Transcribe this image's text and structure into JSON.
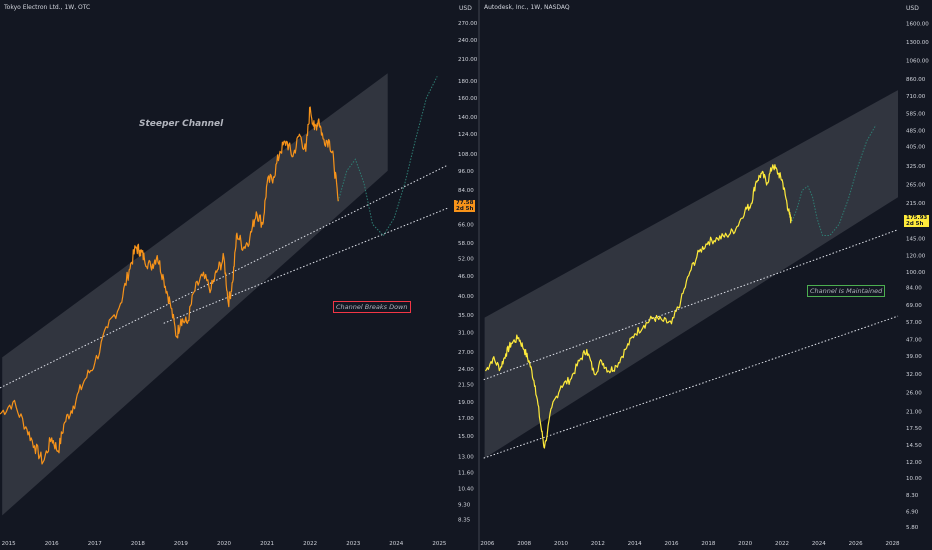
{
  "chart_data": [
    {
      "type": "line",
      "title": "Tokyo Electron Ltd., 1W, OTC",
      "currency": "USD",
      "y_scale": "log",
      "ylim": [
        7.5,
        300
      ],
      "xlim": [
        2014.8,
        2025.2
      ],
      "y_ticks": [
        "270.00",
        "240.00",
        "210.00",
        "180.00",
        "160.00",
        "140.00",
        "124.00",
        "108.00",
        "96.00",
        "84.00",
        "66.00",
        "58.00",
        "52.00",
        "46.00",
        "40.00",
        "35.00",
        "31.00",
        "27.00",
        "24.00",
        "21.50",
        "19.00",
        "17.00",
        "15.00",
        "13.00",
        "11.60",
        "10.40",
        "9.30",
        "8.35"
      ],
      "x_ticks": [
        "2015",
        "2016",
        "2017",
        "2018",
        "2019",
        "2020",
        "2021",
        "2022",
        "2023",
        "2024",
        "2025"
      ],
      "last_price": "77.58",
      "countdown": "2d 5h",
      "series_color": "#f7931a",
      "series": [
        {
          "x": [
            2014.8,
            2015.1,
            2015.4,
            2015.6,
            2015.8,
            2016.0,
            2016.15,
            2016.3,
            2016.5,
            2016.75,
            2017.0,
            2017.3,
            2017.6,
            2017.8,
            2017.95,
            2018.05,
            2018.15,
            2018.3,
            2018.45,
            2018.6,
            2018.75,
            2018.9,
            2019.0,
            2019.15,
            2019.3,
            2019.5,
            2019.7,
            2019.85,
            2020.0,
            2020.1,
            2020.2,
            2020.3,
            2020.45,
            2020.6,
            2020.75,
            2020.9,
            2021.0,
            2021.15,
            2021.3,
            2021.45,
            2021.6,
            2021.75,
            2021.9,
            2022.0,
            2022.1,
            2022.2,
            2022.3,
            2022.45,
            2022.55,
            2022.65
          ],
          "values": [
            17.5,
            19.0,
            16.0,
            14.0,
            12.5,
            14.8,
            13.5,
            16.5,
            18.5,
            22.0,
            25.0,
            32.0,
            38.0,
            48.0,
            56.0,
            55.0,
            52.0,
            49.0,
            53.0,
            45.0,
            38.0,
            30.0,
            34.0,
            33.0,
            41.0,
            46.0,
            42.0,
            48.0,
            52.0,
            38.0,
            44.0,
            62.0,
            56.0,
            60.0,
            72.0,
            66.0,
            88.0,
            92.0,
            110.0,
            118.0,
            106.0,
            124.0,
            110.0,
            150.0,
            128.0,
            138.0,
            120.0,
            118.0,
            102.0,
            77.6
          ]
        }
      ],
      "channel": {
        "top": [
          [
            2014.85,
            26.0
          ],
          [
            2023.8,
            190.0
          ]
        ],
        "bottom": [
          [
            2014.85,
            8.6
          ],
          [
            2023.8,
            96.0
          ]
        ]
      },
      "trendlines": [
        {
          "from": [
            2014.8,
            21.0
          ],
          "to": [
            2025.2,
            100.0
          ]
        },
        {
          "from": [
            2018.6,
            33.0
          ],
          "to": [
            2025.2,
            74.0
          ]
        }
      ],
      "projection": {
        "x": [
          2022.65,
          2022.85,
          2023.05,
          2023.25,
          2023.45,
          2023.7,
          2023.95,
          2024.2,
          2024.45,
          2024.7,
          2024.95
        ],
        "values": [
          77.6,
          96.0,
          104.0,
          88.0,
          66.0,
          61.0,
          69.0,
          88.0,
          120.0,
          160.0,
          186.0
        ]
      },
      "annotations": [
        {
          "text": "Steeper Channel",
          "color": "#ffffff"
        },
        {
          "text": "Channel Breaks Down",
          "color": "#f23645"
        }
      ]
    },
    {
      "type": "line",
      "title": "Autodesk, Inc., 1W, NASDAQ",
      "currency": "USD",
      "y_scale": "log",
      "ylim": [
        5.3,
        1900
      ],
      "xlim": [
        2005.6,
        2028.3
      ],
      "y_ticks": [
        "1600.00",
        "1300.00",
        "1060.00",
        "860.00",
        "710.00",
        "585.00",
        "485.00",
        "405.00",
        "325.00",
        "265.00",
        "215.00",
        "145.00",
        "120.00",
        "100.00",
        "84.00",
        "69.00",
        "57.00",
        "47.00",
        "39.00",
        "32.00",
        "26.00",
        "21.00",
        "17.50",
        "14.50",
        "12.00",
        "10.00",
        "8.30",
        "6.90",
        "5.80"
      ],
      "x_ticks": [
        "2006",
        "2008",
        "2010",
        "2012",
        "2014",
        "2016",
        "2018",
        "2020",
        "2022",
        "2024",
        "2026",
        "2028"
      ],
      "last_price": "175.93",
      "countdown": "2d 5h",
      "series_color": "#ffeb3b",
      "series": [
        {
          "x": [
            2005.9,
            2006.3,
            2006.7,
            2007.0,
            2007.3,
            2007.7,
            2008.0,
            2008.3,
            2008.6,
            2008.9,
            2009.1,
            2009.5,
            2010.0,
            2010.5,
            2011.0,
            2011.4,
            2011.8,
            2012.2,
            2012.6,
            2013.0,
            2013.5,
            2014.0,
            2014.5,
            2015.0,
            2015.5,
            2016.0,
            2016.5,
            2017.0,
            2017.5,
            2018.0,
            2018.5,
            2019.0,
            2019.5,
            2020.0,
            2020.3,
            2020.6,
            2020.9,
            2021.2,
            2021.5,
            2021.8,
            2022.0,
            2022.2,
            2022.4,
            2022.5
          ],
          "values": [
            33.0,
            38.0,
            34.0,
            40.0,
            45.0,
            48.0,
            42.0,
            36.0,
            28.0,
            18.0,
            14.0,
            22.0,
            28.0,
            30.0,
            37.0,
            42.0,
            32.0,
            37.0,
            33.0,
            35.0,
            42.0,
            50.0,
            55.0,
            60.0,
            58.0,
            56.0,
            72.0,
            100.0,
            125.0,
            140.0,
            145.0,
            150.0,
            162.0,
            200.0,
            210.0,
            275.0,
            300.0,
            270.0,
            330.0,
            300.0,
            280.0,
            230.0,
            190.0,
            175.9
          ]
        }
      ],
      "channel": {
        "top": [
          [
            2005.85,
            60.0
          ],
          [
            2028.3,
            760.0
          ]
        ],
        "bottom": [
          [
            2005.85,
            12.5
          ],
          [
            2028.3,
            230.0
          ]
        ]
      },
      "trendlines": [
        {
          "from": [
            2005.8,
            30.0
          ],
          "to": [
            2028.3,
            160.0
          ]
        },
        {
          "from": [
            2005.8,
            12.5
          ],
          "to": [
            2028.3,
            61.0
          ]
        }
      ],
      "projection": {
        "x": [
          2022.55,
          2022.8,
          2023.1,
          2023.4,
          2023.65,
          2023.9,
          2024.2,
          2024.6,
          2025.1,
          2025.6,
          2026.1,
          2026.6,
          2027.1
        ],
        "values": [
          176.0,
          200.0,
          248.0,
          260.0,
          232.0,
          182.0,
          150.0,
          150.0,
          170.0,
          225.0,
          320.0,
          430.0,
          515.0
        ]
      },
      "annotations": [
        {
          "text": "Channel Is Maintained",
          "color": "#4caf50"
        }
      ]
    }
  ]
}
